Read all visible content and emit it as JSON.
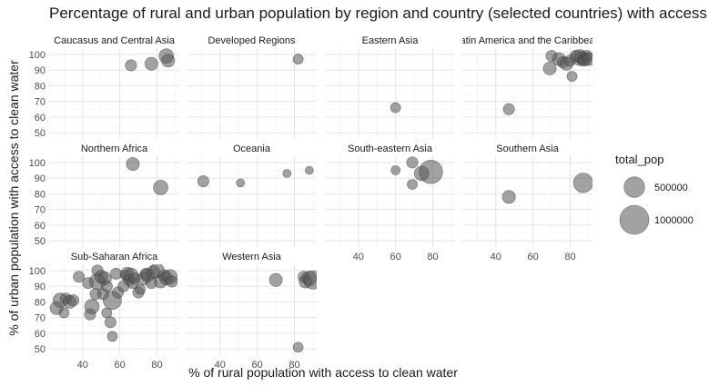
{
  "chart_data": {
    "type": "scatter",
    "title": "Percentage of rural and urban population by region and country (selected countries) with access to clean water",
    "xlabel": "% of rural population with access to clean water",
    "ylabel": "% of urban population with access to clean water",
    "xlim": [
      22,
      92
    ],
    "ylim": [
      46,
      104
    ],
    "x_ticks": [
      40,
      60,
      80
    ],
    "y_ticks": [
      50,
      60,
      70,
      80,
      90,
      100
    ],
    "grid": true,
    "legend": {
      "title": "total_pop",
      "position": "right",
      "entries": [
        {
          "label": "500000",
          "value": 500000
        },
        {
          "label": "1000000",
          "value": 1000000
        }
      ]
    },
    "point_color": "#555555",
    "point_opacity": 0.55,
    "panels": [
      {
        "name": "Caucasus and Central Asia",
        "points": [
          {
            "x": 66,
            "y": 93,
            "size": 150000
          },
          {
            "x": 77,
            "y": 94,
            "size": 200000
          },
          {
            "x": 85,
            "y": 99,
            "size": 250000
          },
          {
            "x": 86,
            "y": 96,
            "size": 200000
          }
        ]
      },
      {
        "name": "Developed Regions",
        "points": [
          {
            "x": 82,
            "y": 97,
            "size": 120000
          }
        ]
      },
      {
        "name": "Eastern Asia",
        "points": [
          {
            "x": 60,
            "y": 66,
            "size": 120000
          }
        ]
      },
      {
        "name": "Latin America and the Caribbean",
        "points": [
          {
            "x": 47,
            "y": 65,
            "size": 150000
          },
          {
            "x": 69,
            "y": 91,
            "size": 200000
          },
          {
            "x": 70,
            "y": 99,
            "size": 150000
          },
          {
            "x": 74,
            "y": 97,
            "size": 200000
          },
          {
            "x": 76,
            "y": 95,
            "size": 150000
          },
          {
            "x": 78,
            "y": 94,
            "size": 200000
          },
          {
            "x": 80,
            "y": 96,
            "size": 150000
          },
          {
            "x": 81,
            "y": 86,
            "size": 120000
          },
          {
            "x": 83,
            "y": 99,
            "size": 150000
          },
          {
            "x": 85,
            "y": 98,
            "size": 300000
          },
          {
            "x": 86,
            "y": 98,
            "size": 200000
          },
          {
            "x": 87,
            "y": 96,
            "size": 150000
          },
          {
            "x": 88,
            "y": 97,
            "size": 200000
          },
          {
            "x": 89,
            "y": 99,
            "size": 150000
          },
          {
            "x": 90,
            "y": 97,
            "size": 200000
          }
        ]
      },
      {
        "name": "Northern Africa",
        "points": [
          {
            "x": 67,
            "y": 99,
            "size": 200000
          },
          {
            "x": 82,
            "y": 84,
            "size": 250000
          }
        ]
      },
      {
        "name": "Oceania",
        "points": [
          {
            "x": 31,
            "y": 88,
            "size": 150000
          },
          {
            "x": 51,
            "y": 87,
            "size": 80000
          },
          {
            "x": 76,
            "y": 93,
            "size": 80000
          },
          {
            "x": 88,
            "y": 95,
            "size": 80000
          }
        ]
      },
      {
        "name": "South-eastern Asia",
        "points": [
          {
            "x": 60,
            "y": 95,
            "size": 100000
          },
          {
            "x": 69,
            "y": 100,
            "size": 150000
          },
          {
            "x": 69,
            "y": 86,
            "size": 120000
          },
          {
            "x": 74,
            "y": 93,
            "size": 250000
          },
          {
            "x": 79,
            "y": 94,
            "size": 650000
          }
        ]
      },
      {
        "name": "Southern Asia",
        "points": [
          {
            "x": 47,
            "y": 78,
            "size": 200000
          },
          {
            "x": 87,
            "y": 87,
            "size": 450000
          }
        ]
      },
      {
        "name": "Sub-Saharan Africa",
        "points": [
          {
            "x": 26,
            "y": 76,
            "size": 200000
          },
          {
            "x": 28,
            "y": 81,
            "size": 250000
          },
          {
            "x": 30,
            "y": 73,
            "size": 120000
          },
          {
            "x": 31,
            "y": 82,
            "size": 150000
          },
          {
            "x": 33,
            "y": 80,
            "size": 200000
          },
          {
            "x": 35,
            "y": 81,
            "size": 150000
          },
          {
            "x": 38,
            "y": 96,
            "size": 150000
          },
          {
            "x": 43,
            "y": 92,
            "size": 150000
          },
          {
            "x": 44,
            "y": 72,
            "size": 150000
          },
          {
            "x": 45,
            "y": 77,
            "size": 250000
          },
          {
            "x": 47,
            "y": 85,
            "size": 150000
          },
          {
            "x": 48,
            "y": 93,
            "size": 300000
          },
          {
            "x": 48,
            "y": 100,
            "size": 150000
          },
          {
            "x": 50,
            "y": 96,
            "size": 200000
          },
          {
            "x": 51,
            "y": 85,
            "size": 150000
          },
          {
            "x": 52,
            "y": 95,
            "size": 200000
          },
          {
            "x": 53,
            "y": 90,
            "size": 150000
          },
          {
            "x": 53,
            "y": 73,
            "size": 120000
          },
          {
            "x": 55,
            "y": 67,
            "size": 150000
          },
          {
            "x": 56,
            "y": 81,
            "size": 400000
          },
          {
            "x": 56,
            "y": 58,
            "size": 120000
          },
          {
            "x": 58,
            "y": 98,
            "size": 150000
          },
          {
            "x": 59,
            "y": 86,
            "size": 150000
          },
          {
            "x": 62,
            "y": 90,
            "size": 150000
          },
          {
            "x": 63,
            "y": 97,
            "size": 120000
          },
          {
            "x": 64,
            "y": 98,
            "size": 200000
          },
          {
            "x": 65,
            "y": 94,
            "size": 150000
          },
          {
            "x": 66,
            "y": 97,
            "size": 250000
          },
          {
            "x": 67,
            "y": 92,
            "size": 150000
          },
          {
            "x": 68,
            "y": 95,
            "size": 150000
          },
          {
            "x": 70,
            "y": 86,
            "size": 150000
          },
          {
            "x": 71,
            "y": 88,
            "size": 120000
          },
          {
            "x": 73,
            "y": 95,
            "size": 200000
          },
          {
            "x": 74,
            "y": 98,
            "size": 150000
          },
          {
            "x": 75,
            "y": 97,
            "size": 200000
          },
          {
            "x": 77,
            "y": 92,
            "size": 150000
          },
          {
            "x": 78,
            "y": 99,
            "size": 200000
          },
          {
            "x": 80,
            "y": 100,
            "size": 250000
          },
          {
            "x": 82,
            "y": 93,
            "size": 200000
          },
          {
            "x": 84,
            "y": 97,
            "size": 150000
          },
          {
            "x": 85,
            "y": 95,
            "size": 200000
          },
          {
            "x": 87,
            "y": 96,
            "size": 250000
          },
          {
            "x": 88,
            "y": 93,
            "size": 150000
          }
        ]
      },
      {
        "name": "Western Asia",
        "points": [
          {
            "x": 70,
            "y": 94,
            "size": 200000
          },
          {
            "x": 82,
            "y": 51,
            "size": 120000
          },
          {
            "x": 85,
            "y": 96,
            "size": 150000
          },
          {
            "x": 86,
            "y": 93,
            "size": 200000
          },
          {
            "x": 88,
            "y": 95,
            "size": 250000
          },
          {
            "x": 90,
            "y": 94,
            "size": 400000
          }
        ]
      }
    ]
  }
}
